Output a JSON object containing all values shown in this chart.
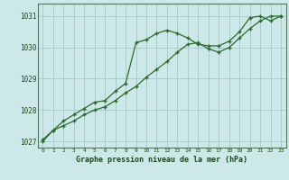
{
  "line1_x": [
    0,
    1,
    2,
    3,
    4,
    5,
    6,
    7,
    8,
    9,
    10,
    11,
    12,
    13,
    14,
    15,
    16,
    17,
    18,
    19,
    20,
    21,
    22,
    23
  ],
  "line1_y": [
    1027.05,
    1027.35,
    1027.65,
    1027.85,
    1028.05,
    1028.25,
    1028.3,
    1028.6,
    1028.85,
    1030.15,
    1030.25,
    1030.45,
    1030.55,
    1030.45,
    1030.3,
    1030.1,
    1030.05,
    1030.05,
    1030.2,
    1030.5,
    1030.95,
    1031.0,
    1030.85,
    1031.0
  ],
  "line2_x": [
    0,
    1,
    2,
    3,
    4,
    5,
    6,
    7,
    8,
    9,
    10,
    11,
    12,
    13,
    14,
    15,
    16,
    17,
    18,
    19,
    20,
    21,
    22,
    23
  ],
  "line2_y": [
    1027.0,
    1027.35,
    1027.5,
    1027.65,
    1027.85,
    1028.0,
    1028.1,
    1028.3,
    1028.55,
    1028.75,
    1029.05,
    1029.3,
    1029.55,
    1029.85,
    1030.1,
    1030.15,
    1029.95,
    1029.85,
    1030.0,
    1030.3,
    1030.6,
    1030.85,
    1031.0,
    1031.0
  ],
  "line_color": "#2d6a2d",
  "bg_color": "#cce8e8",
  "grid_color": "#aacccc",
  "xlabel": "Graphe pression niveau de la mer (hPa)",
  "xlim": [
    -0.5,
    23.5
  ],
  "ylim": [
    1026.8,
    1031.4
  ],
  "yticks": [
    1027,
    1028,
    1029,
    1030,
    1031
  ],
  "xticks": [
    0,
    1,
    2,
    3,
    4,
    5,
    6,
    7,
    8,
    9,
    10,
    11,
    12,
    13,
    14,
    15,
    16,
    17,
    18,
    19,
    20,
    21,
    22,
    23
  ]
}
